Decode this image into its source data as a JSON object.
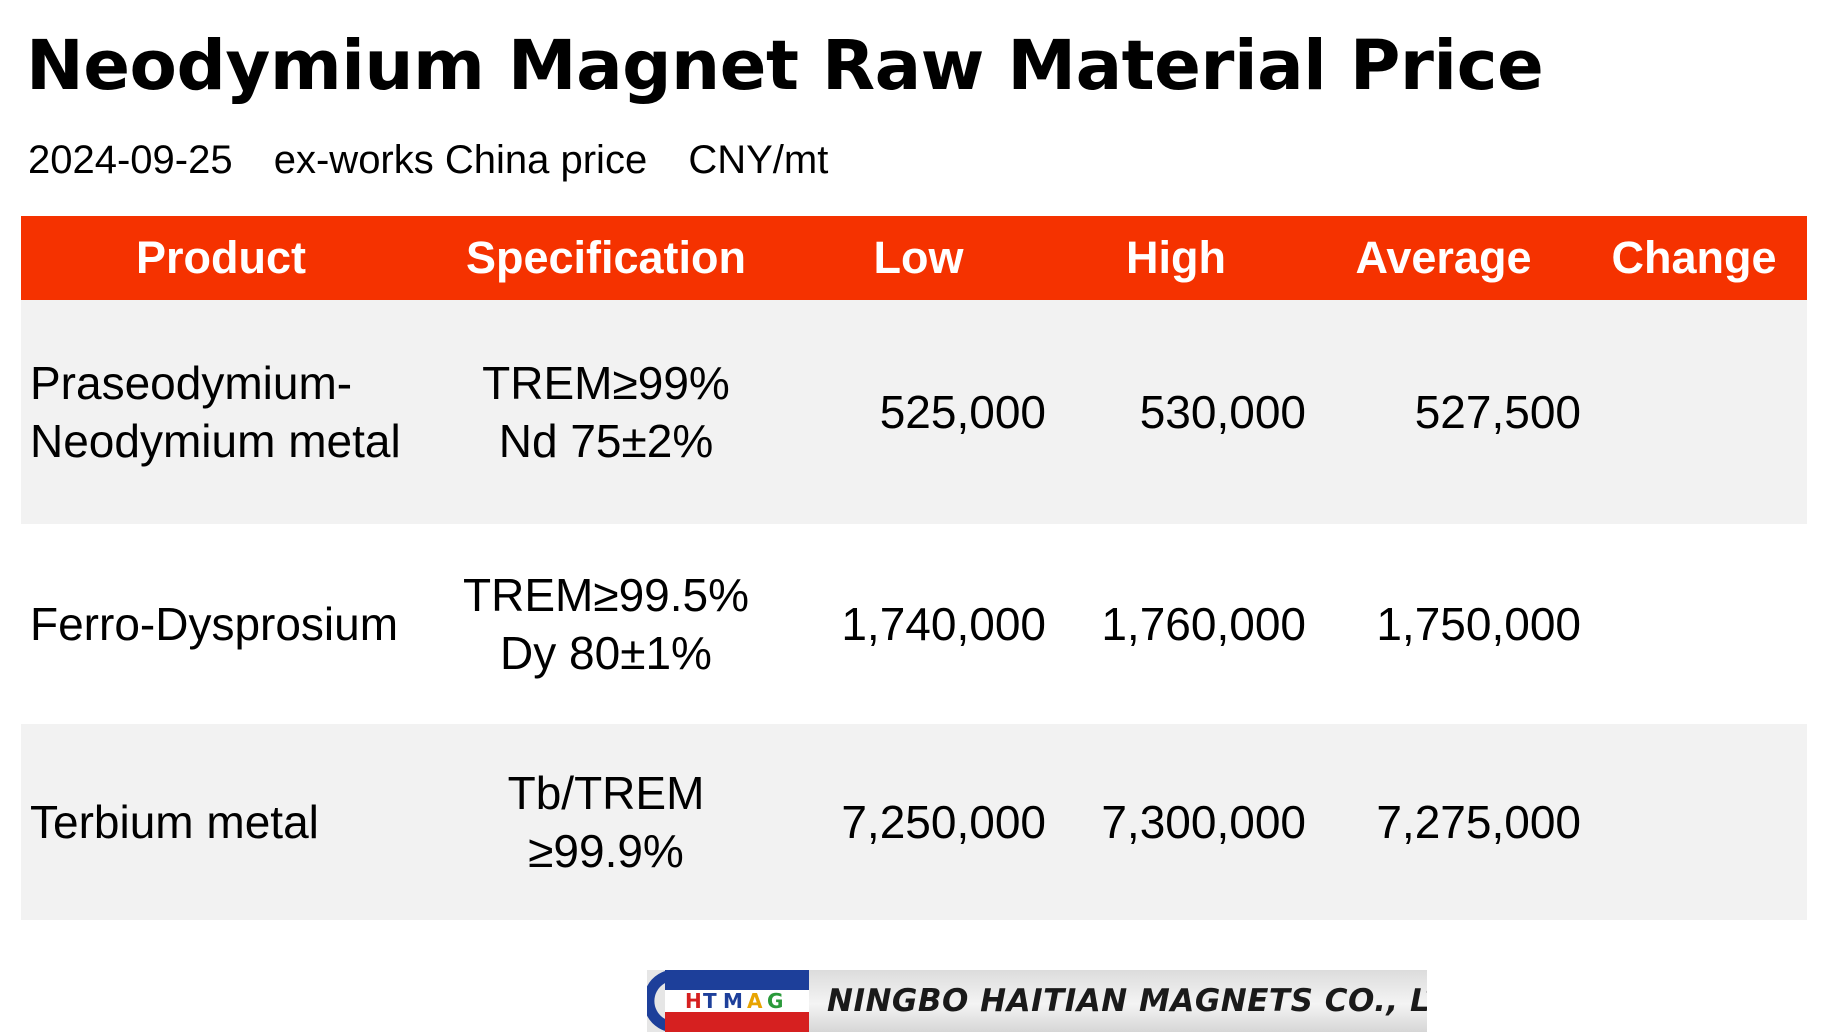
{
  "title": "Neodymium Magnet Raw Material Price",
  "subtitle": {
    "date": "2024-09-25",
    "basis": "ex-works China price",
    "unit": "CNY/mt"
  },
  "table": {
    "header_color": "#f53200",
    "columns": [
      "Product",
      "Specification",
      "Low",
      "High",
      "Average",
      "Change"
    ],
    "rows": [
      {
        "product": [
          "Praseodymium-",
          "Neodymium metal"
        ],
        "spec": [
          "TREM≥99%",
          "Nd 75±2%"
        ],
        "low": "525,000",
        "high": "530,000",
        "average": "527,500",
        "change": ""
      },
      {
        "product": [
          "Ferro-Dysprosium"
        ],
        "spec": [
          "TREM≥99.5%",
          "Dy 80±1%"
        ],
        "low": "1,740,000",
        "high": "1,760,000",
        "average": "1,750,000",
        "change": ""
      },
      {
        "product": [
          "Terbium metal"
        ],
        "spec": [
          "Tb/TREM",
          "≥99.9%"
        ],
        "low": "7,250,000",
        "high": "7,300,000",
        "average": "7,275,000",
        "change": ""
      }
    ]
  },
  "footer": {
    "logo_text": "HTMAG",
    "company_name": "NINGBO HAITIAN MAGNETS CO., LTD"
  }
}
